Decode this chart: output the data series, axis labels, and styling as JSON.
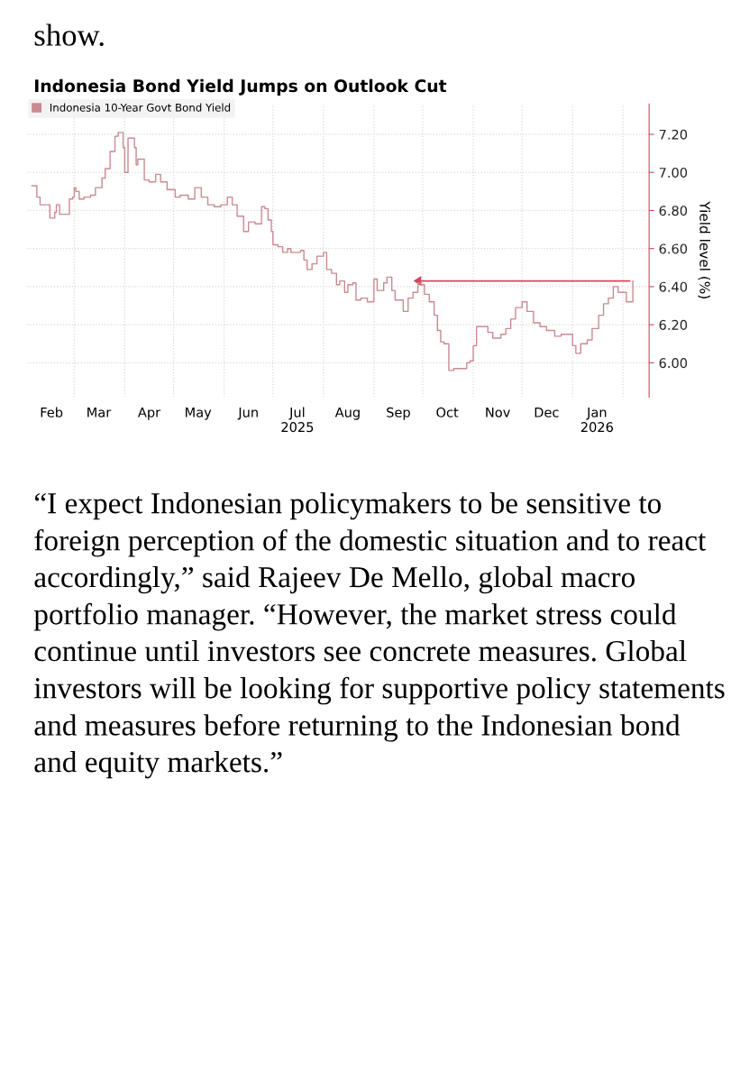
{
  "chart_data": {
    "type": "step",
    "title": "Indonesia Bond Yield Jumps on Outlook Cut",
    "ylabel": "Yield level (%)",
    "x": [
      "2025-02-03",
      "2025-02-06",
      "2025-02-08",
      "2025-02-11",
      "2025-02-14",
      "2025-02-17",
      "2025-02-18",
      "2025-02-20",
      "2025-02-24",
      "2025-02-26",
      "2025-02-28",
      "2025-03-01",
      "2025-03-02",
      "2025-03-04",
      "2025-03-07",
      "2025-03-11",
      "2025-03-14",
      "2025-03-18",
      "2025-03-20",
      "2025-03-23",
      "2025-03-26",
      "2025-03-28",
      "2025-03-31",
      "2025-04-01",
      "2025-04-03",
      "2025-04-07",
      "2025-04-08",
      "2025-04-09",
      "2025-04-13",
      "2025-04-16",
      "2025-04-20",
      "2025-04-23",
      "2025-04-27",
      "2025-05-02",
      "2025-05-05",
      "2025-05-10",
      "2025-05-14",
      "2025-05-18",
      "2025-05-22",
      "2025-05-26",
      "2025-05-30",
      "2025-06-03",
      "2025-06-06",
      "2025-06-09",
      "2025-06-13",
      "2025-06-16",
      "2025-06-20",
      "2025-06-24",
      "2025-06-26",
      "2025-06-28",
      "2025-06-30",
      "2025-07-01",
      "2025-07-04",
      "2025-07-07",
      "2025-07-10",
      "2025-07-12",
      "2025-07-15",
      "2025-07-18",
      "2025-07-20",
      "2025-07-22",
      "2025-07-25",
      "2025-07-28",
      "2025-08-01",
      "2025-08-03",
      "2025-08-06",
      "2025-08-09",
      "2025-08-11",
      "2025-08-14",
      "2025-08-16",
      "2025-08-19",
      "2025-08-21",
      "2025-08-24",
      "2025-08-28",
      "2025-09-01",
      "2025-09-03",
      "2025-09-07",
      "2025-09-09",
      "2025-09-12",
      "2025-09-14",
      "2025-09-17",
      "2025-09-19",
      "2025-09-22",
      "2025-09-25",
      "2025-09-28",
      "2025-09-30",
      "2025-10-02",
      "2025-10-05",
      "2025-10-08",
      "2025-10-10",
      "2025-10-12",
      "2025-10-14",
      "2025-10-17",
      "2025-10-20",
      "2025-10-24",
      "2025-10-28",
      "2025-10-30",
      "2025-11-01",
      "2025-11-03",
      "2025-11-06",
      "2025-11-10",
      "2025-11-13",
      "2025-11-18",
      "2025-11-21",
      "2025-11-24",
      "2025-11-27",
      "2025-12-01",
      "2025-12-04",
      "2025-12-08",
      "2025-12-12",
      "2025-12-16",
      "2025-12-21",
      "2025-12-25",
      "2025-12-29",
      "2026-01-01",
      "2026-01-03",
      "2026-01-06",
      "2026-01-10",
      "2026-01-13",
      "2026-01-17",
      "2026-01-20",
      "2026-01-23",
      "2026-01-26",
      "2026-01-29",
      "2026-02-01",
      "2026-02-03",
      "2026-02-05",
      "2026-02-07"
    ],
    "series": [
      {
        "type": "line",
        "color": "#d9455f",
        "x": [
          "2025-09-30",
          "2026-02-05"
        ],
        "values": [
          6.43,
          6.43
        ]
      },
      {
        "name": "Indonesia 10-Year Govt Bond Yield",
        "color": "#c98a90",
        "values": [
          6.93,
          6.87,
          6.83,
          6.83,
          6.76,
          6.79,
          6.83,
          6.78,
          6.78,
          6.86,
          6.87,
          6.92,
          6.9,
          6.86,
          6.87,
          6.88,
          6.92,
          6.97,
          7.02,
          7.11,
          7.19,
          7.21,
          7.13,
          7.0,
          7.18,
          7.13,
          7.04,
          7.07,
          6.96,
          6.95,
          6.99,
          6.95,
          6.91,
          6.87,
          6.88,
          6.86,
          6.92,
          6.87,
          6.83,
          6.82,
          6.83,
          6.87,
          6.83,
          6.77,
          6.69,
          6.74,
          6.73,
          6.82,
          6.81,
          6.75,
          6.69,
          6.62,
          6.61,
          6.58,
          6.6,
          6.58,
          6.58,
          6.59,
          6.54,
          6.49,
          6.52,
          6.56,
          6.58,
          6.49,
          6.47,
          6.41,
          6.43,
          6.37,
          6.41,
          6.42,
          6.33,
          6.34,
          6.32,
          6.44,
          6.38,
          6.42,
          6.45,
          6.38,
          6.33,
          6.33,
          6.27,
          6.34,
          6.37,
          6.42,
          6.41,
          6.36,
          6.32,
          6.25,
          6.17,
          6.11,
          6.1,
          5.96,
          5.97,
          5.97,
          6.0,
          6.01,
          6.09,
          6.19,
          6.19,
          6.16,
          6.13,
          6.15,
          6.18,
          6.23,
          6.29,
          6.32,
          6.27,
          6.21,
          6.19,
          6.17,
          6.14,
          6.15,
          6.15,
          6.09,
          6.05,
          6.1,
          6.12,
          6.18,
          6.25,
          6.31,
          6.34,
          6.4,
          6.37,
          6.37,
          6.32,
          6.32,
          6.43
        ]
      }
    ],
    "xlim": [
      "2025-01-31",
      "2026-02-17"
    ],
    "xticks": [
      {
        "value": "2025-03-01",
        "label": null
      },
      {
        "value": "2025-04-01",
        "label": null
      },
      {
        "value": "2025-05-01",
        "label": null
      },
      {
        "value": "2025-06-01",
        "label": null
      },
      {
        "value": "2025-07-01",
        "label": null
      },
      {
        "value": "2025-08-01",
        "label": null
      },
      {
        "value": "2025-09-01",
        "label": null
      },
      {
        "value": "2025-10-01",
        "label": null
      },
      {
        "value": "2025-11-01",
        "label": null
      },
      {
        "value": "2025-12-01",
        "label": null
      },
      {
        "value": "2026-01-01",
        "label": null
      },
      {
        "value": "2026-02-01",
        "label": null
      },
      {
        "value": "2025-02-15",
        "label": "Feb"
      },
      {
        "value": "2025-03-16",
        "label": "Mar"
      },
      {
        "value": "2025-04-16",
        "label": "Apr"
      },
      {
        "value": "2025-05-16",
        "label": "May"
      },
      {
        "value": "2025-06-16",
        "label": "Jun"
      },
      {
        "value": "2025-07-16",
        "label": "Jul\n2025"
      },
      {
        "value": "2025-08-16",
        "label": "Aug"
      },
      {
        "value": "2025-09-16",
        "label": "Sep"
      },
      {
        "value": "2025-10-16",
        "label": "Oct"
      },
      {
        "value": "2025-11-16",
        "label": "Nov"
      },
      {
        "value": "2025-12-16",
        "label": "Dec"
      },
      {
        "value": "2026-01-16",
        "label": "Jan\n2026"
      }
    ],
    "ylim": [
      5.82,
      7.36
    ],
    "yticks": [
      {
        "value": 6.0,
        "label": "6.00"
      },
      {
        "value": 6.2,
        "label": "6.20"
      },
      {
        "value": 6.4,
        "label": "6.40"
      },
      {
        "value": 6.6,
        "label": "6.60"
      },
      {
        "value": 6.8,
        "label": "6.80"
      },
      {
        "value": 7.0,
        "label": "7.00"
      },
      {
        "value": 7.2,
        "label": "7.20"
      }
    ],
    "grid": true,
    "legend": "top left",
    "line_style": "solid",
    "marker": "none",
    "annotations": [
      "show.",
      "“I expect Indonesian policymakers to be sensitive to foreign perception of the domestic situation and to react accordingly,” said Rajeev De Mello, global macro portfolio manager. “However, the market stress could continue until investors see concrete measures. Global investors will be looking for supportive policy statements and measures before returning to the Indonesian bond and equity markets.”"
    ]
  }
}
